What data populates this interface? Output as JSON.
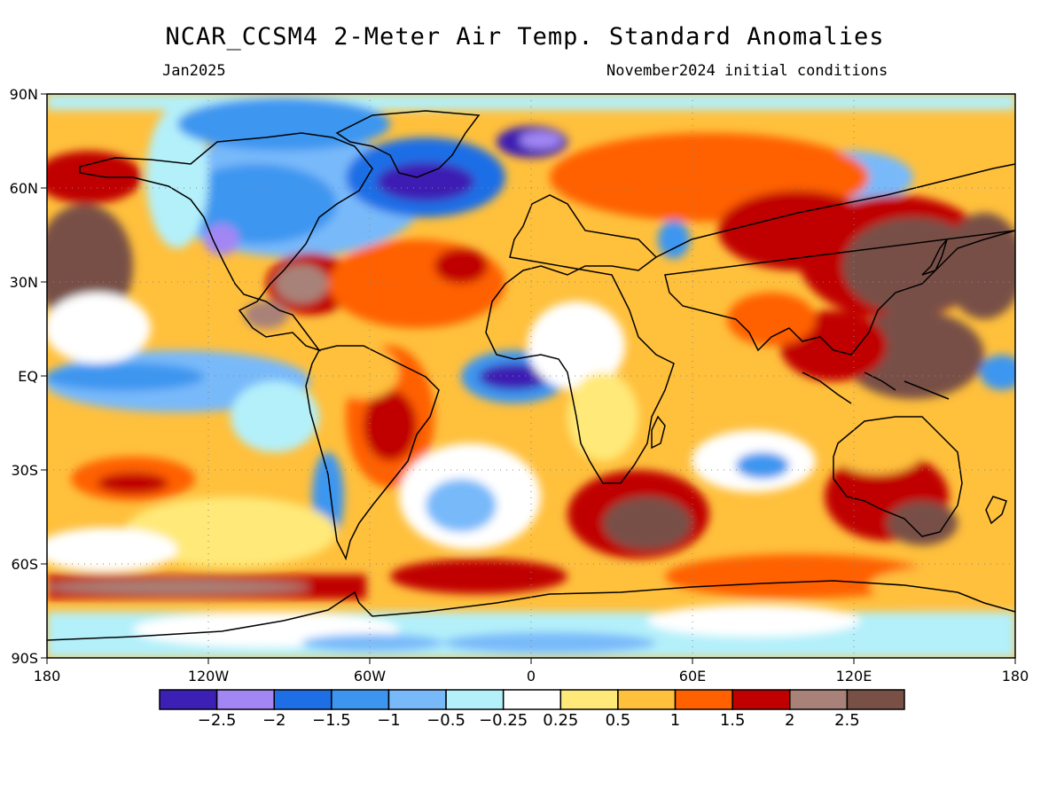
{
  "header": {
    "title": "NCAR_CCSM4 2-Meter Air Temp. Standard Anomalies",
    "valid_month": "Jan2025",
    "initial_conditions": "November2024 initial conditions"
  },
  "map": {
    "projection": "equirectangular",
    "lon_range": [
      -180,
      180
    ],
    "lat_range": [
      -90,
      90
    ],
    "lat_ticks": [
      {
        "lat": 90,
        "label": "90N"
      },
      {
        "lat": 60,
        "label": "60N"
      },
      {
        "lat": 30,
        "label": "30N"
      },
      {
        "lat": 0,
        "label": "EQ"
      },
      {
        "lat": -30,
        "label": "30S"
      },
      {
        "lat": -60,
        "label": "60S"
      },
      {
        "lat": -90,
        "label": "90S"
      }
    ],
    "lon_ticks": [
      {
        "lon": -180,
        "label": "180"
      },
      {
        "lon": -120,
        "label": "120W"
      },
      {
        "lon": -60,
        "label": "60W"
      },
      {
        "lon": 0,
        "label": "0"
      },
      {
        "lon": 60,
        "label": "60E"
      },
      {
        "lon": 120,
        "label": "120E"
      },
      {
        "lon": 180,
        "label": "180"
      }
    ],
    "gridlines": "dotted"
  },
  "colorbar": {
    "colors": [
      "#3c1fb4",
      "#a286f4",
      "#1e6ee6",
      "#3c96f0",
      "#78b9fa",
      "#b4f0fa",
      "#ffffff",
      "#ffe978",
      "#ffc03c",
      "#ff6000",
      "#c00000",
      "#a88278",
      "#785046"
    ],
    "labels": [
      "-2.5",
      "-2",
      "-1.5",
      "-1",
      "-0.5",
      "-0.25",
      "0.25",
      "0.5",
      "1",
      "1.5",
      "2",
      "2.5"
    ]
  }
}
